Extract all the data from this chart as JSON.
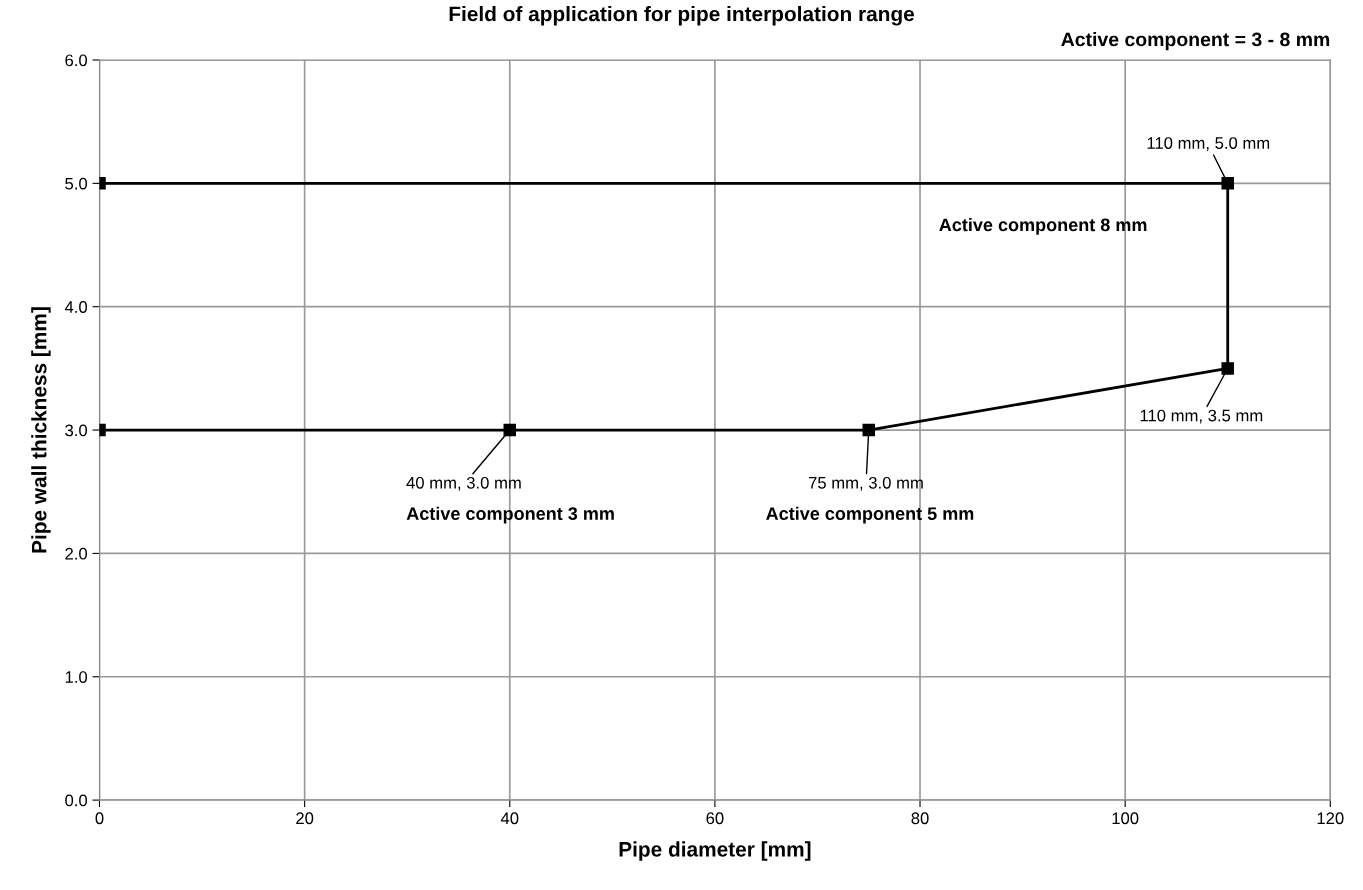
{
  "chart_data": {
    "type": "line",
    "title": "Field of application for pipe interpolation range",
    "subtitle": "Active component = 3 - 8 mm",
    "xlabel": "Pipe diameter [mm]",
    "ylabel": "Pipe wall thickness [mm]",
    "x": [
      0,
      40,
      75,
      110,
      110,
      0
    ],
    "series": [
      {
        "color": "#000000",
        "values": [
          3.0,
          3.0,
          3.0,
          3.5,
          5.0,
          5.0
        ]
      }
    ],
    "marker": "square",
    "line_style": "solid",
    "grid": true,
    "legend": false,
    "xlim": [
      0,
      120
    ],
    "xticks": [
      0,
      20,
      40,
      60,
      80,
      100,
      120
    ],
    "ylim": [
      0.0,
      6.0
    ],
    "yticks": [
      {
        "value": 0,
        "label": "0.0"
      },
      {
        "value": 1,
        "label": "1.0"
      },
      {
        "value": 2,
        "label": "2.0"
      },
      {
        "value": 3,
        "label": "3.0"
      },
      {
        "value": 4,
        "label": "4.0"
      },
      {
        "value": 5,
        "label": "5.0"
      },
      {
        "value": 6,
        "label": "6.0"
      }
    ],
    "annotations": [
      {
        "text": "110 mm, 5.0 mm",
        "x": 110,
        "y": 5.0
      },
      {
        "text": "110 mm, 3.5 mm",
        "x": 110,
        "y": 3.5
      },
      {
        "text": "40 mm, 3.0 mm",
        "x": 40,
        "y": 3.0
      },
      {
        "text": "75 mm, 3.0 mm",
        "x": 75,
        "y": 3.0
      },
      {
        "text": "Active component 8 mm",
        "x": 92,
        "y": 5.0
      },
      "Active component 3 mm",
      "Active component 5 mm"
    ]
  }
}
